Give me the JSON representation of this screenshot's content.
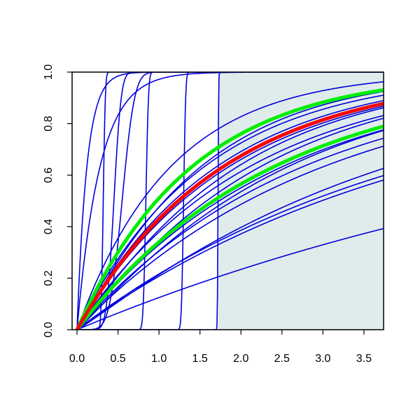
{
  "chart_data": {
    "type": "line",
    "title": "",
    "xlabel": "",
    "ylabel": "",
    "xlim": [
      -0.06,
      3.74
    ],
    "ylim": [
      0.0,
      1.0
    ],
    "x_ticks": [
      0.0,
      0.5,
      1.0,
      1.5,
      2.0,
      2.5,
      3.0,
      3.5
    ],
    "x_tick_labels": [
      "0.0",
      "0.5",
      "1.0",
      "1.5",
      "2.0",
      "2.5",
      "3.0",
      "3.5"
    ],
    "y_ticks": [
      0.0,
      0.2,
      0.4,
      0.6,
      0.8,
      1.0
    ],
    "y_tick_labels": [
      "0.0",
      "0.2",
      "0.4",
      "0.6",
      "0.8",
      "1.0"
    ],
    "grid": false,
    "legend": "none",
    "shaded_region": {
      "x_from": 1.72,
      "x_to": 3.74,
      "color": "#e0ecec"
    },
    "colors": {
      "curves": "#0000dd",
      "highlight": "#ff0000",
      "bounds": "#00ee00",
      "shade": "#e0ecec"
    },
    "series": [
      {
        "kind": "gamma",
        "shape": 1.0,
        "scale": 0.12,
        "color": "#0000dd",
        "width": 1.6
      },
      {
        "kind": "gamma",
        "shape": 1.0,
        "scale": 0.28,
        "color": "#0000dd",
        "width": 1.6
      },
      {
        "kind": "step",
        "center": 0.32,
        "spread": 0.02,
        "color": "#0000dd",
        "width": 1.6
      },
      {
        "kind": "step",
        "center": 0.45,
        "spread": 0.07,
        "color": "#0000dd",
        "width": 1.6
      },
      {
        "kind": "step",
        "center": 0.55,
        "spread": 0.12,
        "color": "#0000dd",
        "width": 1.6
      },
      {
        "kind": "step",
        "center": 0.84,
        "spread": 0.025,
        "color": "#0000dd",
        "width": 1.6
      },
      {
        "kind": "step",
        "center": 1.3,
        "spread": 0.02,
        "color": "#0000dd",
        "width": 1.6
      },
      {
        "kind": "step",
        "center": 1.72,
        "spread": 0.006,
        "color": "#0000dd",
        "width": 1.6
      },
      {
        "kind": "gamma",
        "shape": 1.0,
        "scale": 1.14,
        "color": "#0000dd",
        "width": 1.6
      },
      {
        "kind": "gamma",
        "shape": 1.1,
        "scale": 1.35,
        "color": "#0000dd",
        "width": 1.6
      },
      {
        "kind": "gamma",
        "shape": 1.0,
        "scale": 1.55,
        "color": "#0000dd",
        "width": 1.6
      },
      {
        "kind": "gamma",
        "shape": 1.0,
        "scale": 1.7,
        "color": "#0000dd",
        "width": 1.6
      },
      {
        "kind": "gamma",
        "shape": 1.1,
        "scale": 1.75,
        "color": "#0000dd",
        "width": 1.6
      },
      {
        "kind": "gamma",
        "shape": 1.0,
        "scale": 1.85,
        "color": "#0000dd",
        "width": 1.6
      },
      {
        "kind": "gamma",
        "shape": 1.1,
        "scale": 2.0,
        "color": "#0000dd",
        "width": 1.6
      },
      {
        "kind": "gamma",
        "shape": 1.0,
        "scale": 2.1,
        "color": "#0000dd",
        "width": 1.6
      },
      {
        "kind": "gamma",
        "shape": 1.1,
        "scale": 2.3,
        "color": "#0000dd",
        "width": 1.6
      },
      {
        "kind": "gamma",
        "shape": 1.0,
        "scale": 2.5,
        "color": "#0000dd",
        "width": 1.6
      },
      {
        "kind": "gamma",
        "shape": 1.0,
        "scale": 2.75,
        "color": "#0000dd",
        "width": 1.6
      },
      {
        "kind": "gamma",
        "shape": 1.0,
        "scale": 3.0,
        "color": "#0000dd",
        "width": 1.6
      },
      {
        "kind": "gamma",
        "shape": 1.1,
        "scale": 3.4,
        "color": "#0000dd",
        "width": 1.6
      },
      {
        "kind": "gamma",
        "shape": 1.0,
        "scale": 4.1,
        "color": "#0000dd",
        "width": 1.6
      },
      {
        "kind": "gamma",
        "shape": 1.0,
        "scale": 4.3,
        "color": "#0000dd",
        "width": 1.6
      },
      {
        "kind": "gamma",
        "shape": 1.0,
        "scale": 7.5,
        "color": "#0000dd",
        "width": 1.6
      },
      {
        "kind": "gamma",
        "shape": 1.0,
        "scale": 1.4,
        "color": "#00ee00",
        "width": 5
      },
      {
        "kind": "gamma",
        "shape": 1.0,
        "scale": 2.4,
        "color": "#00ee00",
        "width": 5
      },
      {
        "kind": "gamma",
        "shape": 1.0,
        "scale": 1.78,
        "color": "#ff0000",
        "width": 5
      }
    ]
  }
}
